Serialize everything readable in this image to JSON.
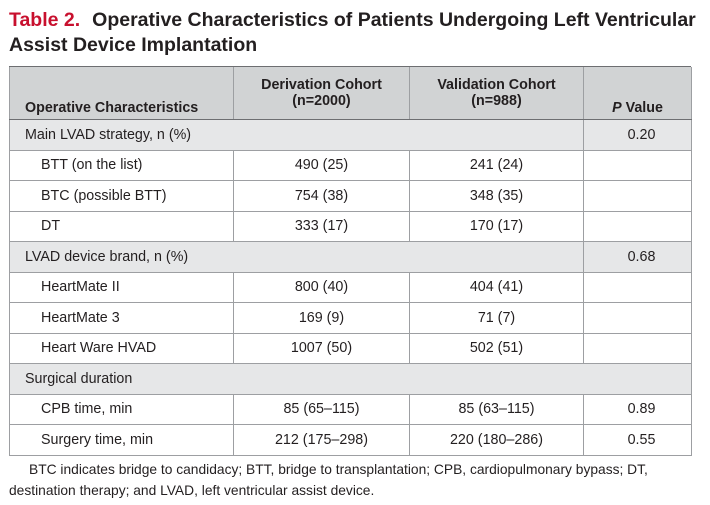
{
  "title": {
    "label": "Table 2.",
    "text": "Operative Characteristics of Patients Undergoing Left Ventricular Assist Device Implantation"
  },
  "header": {
    "col1": "Operative Characteristics",
    "col2_line1": "Derivation Cohort",
    "col2_line2": "(n=2000)",
    "col3_line1": "Validation Cohort",
    "col3_line2": "(n=988)",
    "col4_italic": "P",
    "col4_rest": " Value"
  },
  "groups": [
    {
      "label": "Main LVAD strategy, n (%)",
      "p": "0.20",
      "rows": [
        {
          "label": "BTT (on the list)",
          "derivation": "490 (25)",
          "validation": "241 (24)",
          "p": ""
        },
        {
          "label": "BTC (possible BTT)",
          "derivation": "754 (38)",
          "validation": "348 (35)",
          "p": ""
        },
        {
          "label": "DT",
          "derivation": "333 (17)",
          "validation": "170 (17)",
          "p": ""
        }
      ]
    },
    {
      "label": "LVAD device brand, n (%)",
      "p": "0.68",
      "rows": [
        {
          "label": "HeartMate II",
          "derivation": "800 (40)",
          "validation": "404 (41)",
          "p": ""
        },
        {
          "label": "HeartMate 3",
          "derivation": "169 (9)",
          "validation": "71 (7)",
          "p": ""
        },
        {
          "label": "Heart Ware HVAD",
          "derivation": "1007 (50)",
          "validation": "502 (51)",
          "p": ""
        }
      ]
    },
    {
      "label": "Surgical duration",
      "p": "",
      "rows": [
        {
          "label": "CPB time, min",
          "derivation": "85 (65–115)",
          "validation": "85 (63–115)",
          "p": "0.89"
        },
        {
          "label": "Surgery time, min",
          "derivation": "212 (175–298)",
          "validation": "220 (180–286)",
          "p": "0.55"
        }
      ]
    }
  ],
  "footnote": "BTC indicates bridge to candidacy; BTT, bridge to transplantation; CPB, cardiopulmonary bypass; DT, destination therapy; and LVAD, left ventricular assist device."
}
